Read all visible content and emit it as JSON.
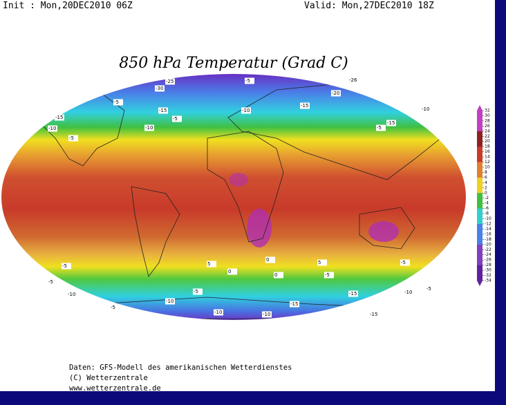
{
  "header": {
    "init": "Init : Mon,20DEC2010 06Z",
    "valid": "Valid: Mon,27DEC2010 18Z"
  },
  "title": "850 hPa Temperatur (Grad C)",
  "colorbar": {
    "ticks": [
      32,
      30,
      28,
      26,
      24,
      22,
      20,
      18,
      16,
      14,
      12,
      10,
      8,
      6,
      4,
      2,
      0,
      -2,
      -4,
      -6,
      -8,
      -10,
      -12,
      -14,
      -16,
      -18,
      -20,
      -22,
      -24,
      -26,
      -28,
      -30,
      -32,
      -34
    ]
  },
  "map_labels": [
    -5,
    -26,
    -20,
    -15,
    -10,
    -5,
    -10,
    -15,
    -5,
    -5,
    -10,
    -5,
    -15,
    -25,
    -30,
    -15,
    -10,
    5,
    0,
    5,
    -5,
    0,
    -5,
    -5,
    -10,
    -10,
    -5,
    -10,
    -10,
    -15,
    -15,
    -10,
    -5,
    -15,
    -5,
    0,
    -5
  ],
  "footer": {
    "source": "Daten: GFS-Modell des amerikanischen Wetterdienstes",
    "copyright": "(C) Wetterzentrale",
    "url": "www.wetterzentrale.de"
  }
}
